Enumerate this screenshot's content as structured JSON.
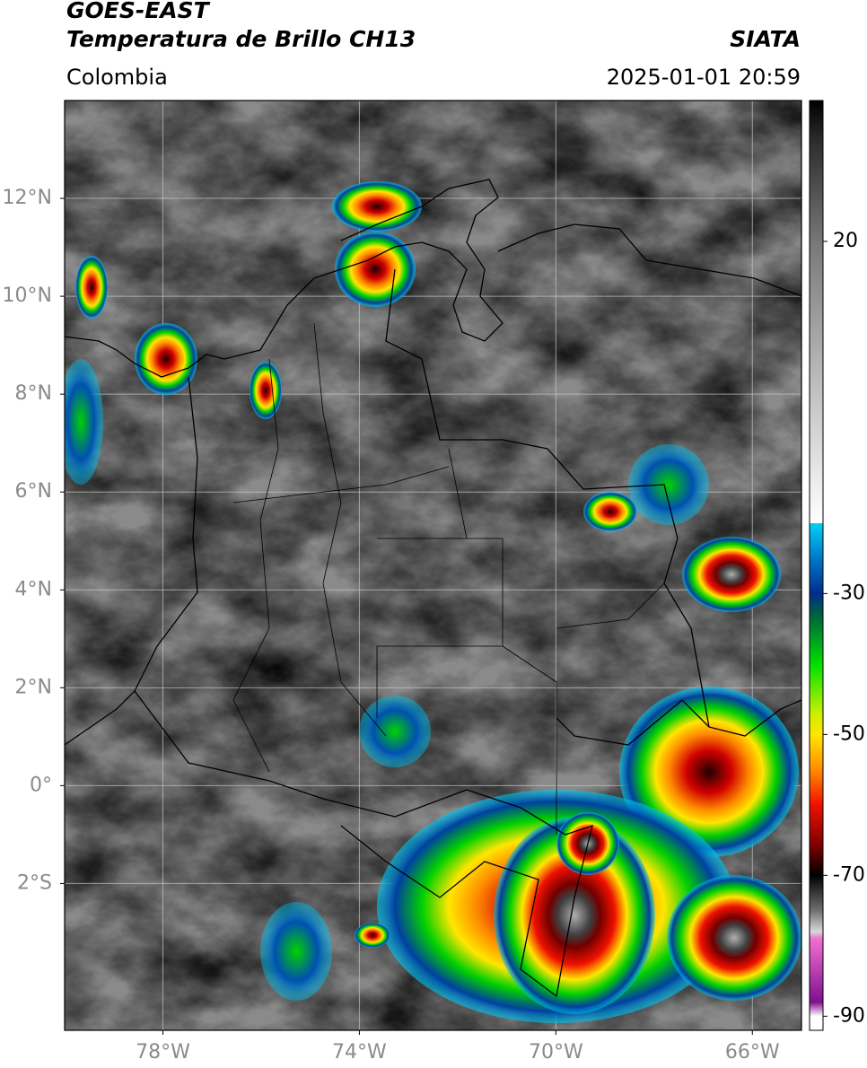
{
  "header": {
    "title1": "GOES-EAST",
    "title2": "Temperatura de Brillo CH13",
    "region": "Colombia",
    "source": "SIATA",
    "datetime": "2025-01-01 20:59"
  },
  "map": {
    "xlim": [
      -80,
      -65
    ],
    "ylim": [
      -5,
      14
    ],
    "xticks": [
      {
        "value": -78,
        "label": "78°W"
      },
      {
        "value": -74,
        "label": "74°W"
      },
      {
        "value": -70,
        "label": "70°W"
      },
      {
        "value": -66,
        "label": "66°W"
      }
    ],
    "yticks": [
      {
        "value": 12,
        "label": "12°N"
      },
      {
        "value": 10,
        "label": "10°N"
      },
      {
        "value": 8,
        "label": "8°N"
      },
      {
        "value": 6,
        "label": "6°N"
      },
      {
        "value": 4,
        "label": "4°N"
      },
      {
        "value": 2,
        "label": "2°N"
      },
      {
        "value": 0,
        "label": "0°"
      },
      {
        "value": -2,
        "label": "2°S"
      }
    ],
    "grid": true
  },
  "colorbar": {
    "lim": [
      -92,
      40
    ],
    "ticks": [
      20,
      -30,
      -50,
      -70,
      -90
    ],
    "stops": [
      {
        "value": 40,
        "color": "#000000"
      },
      {
        "value": 34,
        "color": "#2e2e2e"
      },
      {
        "value": 20,
        "color": "#777777"
      },
      {
        "value": 0,
        "color": "#bdbdbd"
      },
      {
        "value": -20,
        "color": "#ffffff"
      },
      {
        "value": -20,
        "color": "#00d2f5"
      },
      {
        "value": -25,
        "color": "#0078c8"
      },
      {
        "value": -30,
        "color": "#002d8c"
      },
      {
        "value": -33,
        "color": "#006040"
      },
      {
        "value": -40,
        "color": "#00e000"
      },
      {
        "value": -47,
        "color": "#c8f000"
      },
      {
        "value": -50,
        "color": "#ffe600"
      },
      {
        "value": -55,
        "color": "#ff8c00"
      },
      {
        "value": -60,
        "color": "#f01000"
      },
      {
        "value": -66,
        "color": "#780000"
      },
      {
        "value": -70,
        "color": "#000000"
      },
      {
        "value": -75,
        "color": "#707070"
      },
      {
        "value": -78,
        "color": "#d8d8d8"
      },
      {
        "value": -79,
        "color": "#f070d0"
      },
      {
        "value": -88,
        "color": "#801090"
      },
      {
        "value": -90,
        "color": "#ffffff"
      }
    ]
  }
}
